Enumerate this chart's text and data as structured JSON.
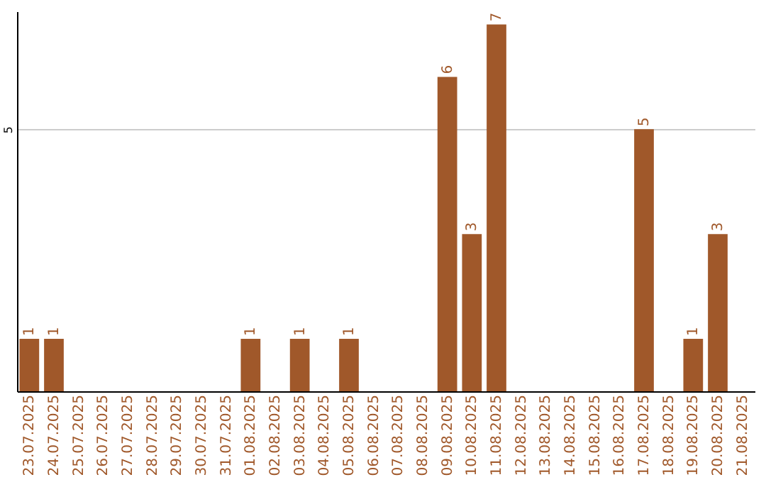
{
  "chart_data": {
    "type": "bar",
    "categories": [
      "23.07.2025",
      "24.07.2025",
      "25.07.2025",
      "26.07.2025",
      "27.07.2025",
      "28.07.2025",
      "29.07.2025",
      "30.07.2025",
      "31.07.2025",
      "01.08.2025",
      "02.08.2025",
      "03.08.2025",
      "04.08.2025",
      "05.08.2025",
      "06.08.2025",
      "07.08.2025",
      "08.08.2025",
      "09.08.2025",
      "10.08.2025",
      "11.08.2025",
      "12.08.2025",
      "13.08.2025",
      "14.08.2025",
      "15.08.2025",
      "16.08.2025",
      "17.08.2025",
      "18.08.2025",
      "19.08.2025",
      "20.08.2025",
      "21.08.2025"
    ],
    "values": [
      1,
      1,
      0,
      0,
      0,
      0,
      0,
      0,
      0,
      1,
      0,
      1,
      0,
      1,
      0,
      0,
      0,
      6,
      3,
      7,
      0,
      0,
      0,
      0,
      0,
      5,
      0,
      1,
      3,
      0
    ],
    "value_labels": [
      "1",
      "1",
      null,
      null,
      null,
      null,
      null,
      null,
      null,
      "1",
      null,
      "1",
      null,
      "1",
      null,
      null,
      null,
      "6",
      "3",
      "7",
      null,
      null,
      null,
      null,
      null,
      "5",
      null,
      "1",
      "3",
      null
    ],
    "color": "#a0582a",
    "ylim": [
      0,
      7.25
    ],
    "yticks": [
      5
    ],
    "grid": "y"
  }
}
